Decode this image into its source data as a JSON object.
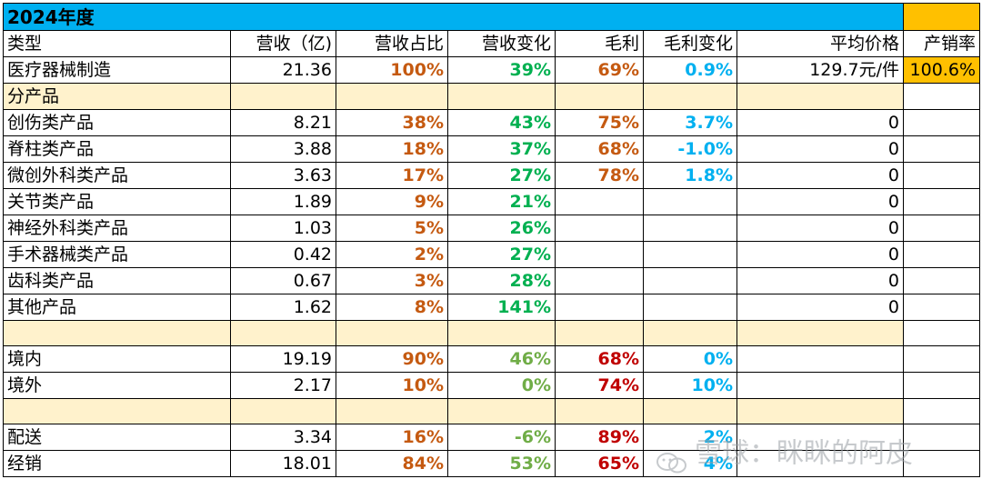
{
  "title": "2024年度",
  "headers": [
    "类型",
    "营收（亿)",
    "营收占比",
    "营收变化",
    "毛利",
    "毛利变化",
    "平均价格",
    "产销率"
  ],
  "total": {
    "name": "医疗器械制造",
    "revenue": "21.36",
    "share": "100%",
    "change": "39%",
    "margin": "69%",
    "margin_change": "0.9%",
    "avg_price": "129.7元/件",
    "sell_through": "100.6%"
  },
  "section_products": "分产品",
  "products": [
    {
      "name": "创伤类产品",
      "revenue": "8.21",
      "share": "38%",
      "change": "43%",
      "margin": "75%",
      "margin_change": "3.7%",
      "avg_price": "0"
    },
    {
      "name": "脊柱类产品",
      "revenue": "3.88",
      "share": "18%",
      "change": "37%",
      "margin": "68%",
      "margin_change": "-1.0%",
      "avg_price": "0"
    },
    {
      "name": "微创外科类产品",
      "revenue": "3.63",
      "share": "17%",
      "change": "27%",
      "margin": "78%",
      "margin_change": "1.8%",
      "avg_price": "0"
    },
    {
      "name": "关节类产品",
      "revenue": "1.89",
      "share": "9%",
      "change": "21%",
      "margin": "",
      "margin_change": "",
      "avg_price": "0"
    },
    {
      "name": "神经外科类产品",
      "revenue": "1.03",
      "share": "5%",
      "change": "26%",
      "margin": "",
      "margin_change": "",
      "avg_price": "0"
    },
    {
      "name": "手术器械类产品",
      "revenue": "0.42",
      "share": "2%",
      "change": "27%",
      "margin": "",
      "margin_change": "",
      "avg_price": "0"
    },
    {
      "name": "齿科类产品",
      "revenue": "0.67",
      "share": "3%",
      "change": "28%",
      "margin": "",
      "margin_change": "",
      "avg_price": "0"
    },
    {
      "name": "其他产品",
      "revenue": "1.62",
      "share": "8%",
      "change": "141%",
      "margin": "",
      "margin_change": "",
      "avg_price": "0"
    }
  ],
  "regions": [
    {
      "name": "境内",
      "revenue": "19.19",
      "share": "90%",
      "change": "46%",
      "margin": "68%",
      "margin_change": "0%"
    },
    {
      "name": "境外",
      "revenue": "2.17",
      "share": "10%",
      "change": "0%",
      "margin": "74%",
      "margin_change": "10%"
    }
  ],
  "channels": [
    {
      "name": "配送",
      "revenue": "3.34",
      "share": "16%",
      "change": "-6%",
      "margin": "89%",
      "margin_change": "2%"
    },
    {
      "name": "经销",
      "revenue": "18.01",
      "share": "84%",
      "change": "53%",
      "margin": "65%",
      "margin_change": "4%"
    }
  ],
  "watermark": "雪球：眯眯的阿皮",
  "icons": {
    "watermark": "wechat-icon"
  },
  "colors": {
    "title_bg": "#00b0f0",
    "highlight": "#ffc000",
    "section_bg": "#fff2cc",
    "share": "#c55a11",
    "change": "#00b050",
    "margin_red": "#c00000",
    "margin_change": "#00b0f0"
  }
}
